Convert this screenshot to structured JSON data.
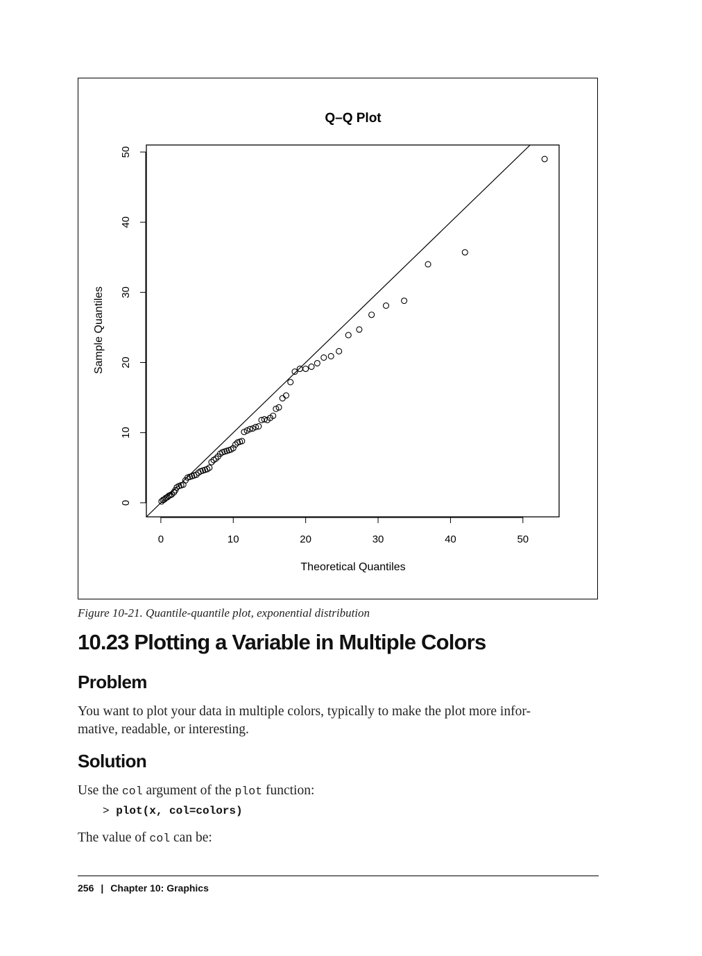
{
  "chart_data": {
    "type": "scatter",
    "title": "Q–Q Plot",
    "xlabel": "Theoretical Quantiles",
    "ylabel": "Sample Quantiles",
    "xlim": [
      -2,
      55
    ],
    "ylim": [
      -2,
      51
    ],
    "xticks": [
      0,
      10,
      20,
      30,
      40,
      50
    ],
    "yticks": [
      0,
      10,
      20,
      30,
      40,
      50
    ],
    "grid": false,
    "reference_line": {
      "intercept": 0,
      "slope": 1
    },
    "points": [
      [
        0.1,
        0.2
      ],
      [
        0.3,
        0.4
      ],
      [
        0.5,
        0.5
      ],
      [
        0.7,
        0.7
      ],
      [
        0.9,
        0.8
      ],
      [
        1.1,
        1.0
      ],
      [
        1.3,
        1.1
      ],
      [
        1.5,
        1.2
      ],
      [
        1.8,
        1.5
      ],
      [
        2.0,
        1.8
      ],
      [
        2.2,
        2.2
      ],
      [
        2.5,
        2.4
      ],
      [
        2.8,
        2.5
      ],
      [
        3.1,
        2.6
      ],
      [
        3.4,
        3.2
      ],
      [
        3.7,
        3.6
      ],
      [
        4.0,
        3.7
      ],
      [
        4.3,
        3.8
      ],
      [
        4.6,
        3.9
      ],
      [
        4.9,
        4.0
      ],
      [
        5.2,
        4.3
      ],
      [
        5.5,
        4.5
      ],
      [
        5.8,
        4.6
      ],
      [
        6.1,
        4.7
      ],
      [
        6.4,
        4.8
      ],
      [
        6.7,
        5.0
      ],
      [
        7.0,
        5.8
      ],
      [
        7.3,
        6.1
      ],
      [
        7.6,
        6.3
      ],
      [
        7.9,
        6.6
      ],
      [
        8.2,
        7.0
      ],
      [
        8.5,
        7.2
      ],
      [
        8.8,
        7.3
      ],
      [
        9.1,
        7.4
      ],
      [
        9.4,
        7.5
      ],
      [
        9.7,
        7.6
      ],
      [
        10.0,
        7.8
      ],
      [
        10.3,
        8.3
      ],
      [
        10.6,
        8.6
      ],
      [
        10.9,
        8.7
      ],
      [
        11.2,
        8.8
      ],
      [
        11.5,
        10.1
      ],
      [
        11.9,
        10.3
      ],
      [
        12.3,
        10.5
      ],
      [
        12.7,
        10.6
      ],
      [
        13.1,
        10.8
      ],
      [
        13.5,
        10.9
      ],
      [
        13.9,
        11.8
      ],
      [
        14.3,
        11.9
      ],
      [
        14.7,
        11.8
      ],
      [
        15.1,
        12.1
      ],
      [
        15.5,
        12.4
      ],
      [
        15.9,
        13.4
      ],
      [
        16.3,
        13.6
      ],
      [
        16.8,
        14.9
      ],
      [
        17.3,
        15.3
      ],
      [
        17.9,
        17.2
      ],
      [
        18.5,
        18.7
      ],
      [
        19.2,
        19.1
      ],
      [
        20.0,
        19.1
      ],
      [
        20.8,
        19.4
      ],
      [
        21.6,
        19.9
      ],
      [
        22.5,
        20.7
      ],
      [
        23.5,
        20.9
      ],
      [
        24.6,
        21.6
      ],
      [
        25.9,
        23.9
      ],
      [
        27.4,
        24.7
      ],
      [
        29.1,
        26.8
      ],
      [
        31.1,
        28.1
      ],
      [
        33.6,
        28.8
      ],
      [
        36.9,
        34.0
      ],
      [
        42.0,
        35.7
      ],
      [
        53.0,
        49.0
      ]
    ]
  },
  "caption": "Figure 10-21. Quantile-quantile plot, exponential distribution",
  "section_title": "10.23  Plotting a Variable in Multiple Colors",
  "problem": {
    "heading": "Problem",
    "text_line1": "You want to plot your data in multiple colors, typically to make the plot more infor-",
    "text_line2": "mative, readable, or interesting."
  },
  "solution": {
    "heading": "Solution",
    "line_pre": "Use the ",
    "line_code1": "col",
    "line_mid": " argument of the ",
    "line_code2": "plot",
    "line_post": " function:",
    "code_prompt": "> ",
    "code": "plot(x, col=colors)",
    "value_pre": "The value of ",
    "value_code": "col",
    "value_post": " can be:"
  },
  "footer": {
    "page_number": "256",
    "separator": "|",
    "chapter": "Chapter 10:  Graphics"
  }
}
